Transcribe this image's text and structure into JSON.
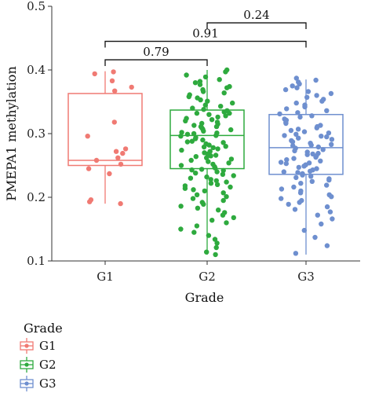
{
  "chart_data": {
    "type": "box",
    "title": "",
    "xlabel": "Grade",
    "ylabel": "PMEPA1 methylation",
    "ylim": [
      0.1,
      0.5
    ],
    "yticks": [
      0.1,
      0.2,
      0.3,
      0.4,
      0.5
    ],
    "yticklabels": [
      "0.1",
      "0.2",
      "0.3",
      "0.4",
      "0.5"
    ],
    "categories": [
      "G1",
      "G2",
      "G3"
    ],
    "colors": {
      "G1": "#F07A73",
      "G2": "#2EAA3E",
      "G3": "#6E8FCF"
    },
    "legend": {
      "title": "Grade",
      "position": "bottom-left",
      "items": [
        "G1",
        "G2",
        "G3"
      ]
    },
    "boxes": [
      {
        "name": "G1",
        "whisker_low": 0.19,
        "q1": 0.25,
        "median": 0.258,
        "q3": 0.363,
        "whisker_high": 0.398
      },
      {
        "name": "G2",
        "whisker_low": 0.11,
        "q1": 0.245,
        "median": 0.297,
        "q3": 0.337,
        "whisker_high": 0.4
      },
      {
        "name": "G3",
        "whisker_low": 0.11,
        "q1": 0.236,
        "median": 0.278,
        "q3": 0.33,
        "whisker_high": 0.385
      }
    ],
    "comparisons": [
      {
        "groups": [
          "G1",
          "G2"
        ],
        "label": "0.79",
        "y": 0.416
      },
      {
        "groups": [
          "G1",
          "G3"
        ],
        "label": "0.91",
        "y": 0.445
      },
      {
        "groups": [
          "G2",
          "G3"
        ],
        "label": "0.24",
        "y": 0.474
      }
    ],
    "points": {
      "G1": [
        0.397,
        0.394,
        0.383,
        0.373,
        0.367,
        0.318,
        0.296,
        0.276,
        0.272,
        0.269,
        0.262,
        0.258,
        0.252,
        0.245,
        0.237,
        0.196,
        0.193,
        0.19
      ],
      "G2": [
        0.4,
        0.397,
        0.392,
        0.389,
        0.385,
        0.382,
        0.38,
        0.377,
        0.374,
        0.372,
        0.369,
        0.366,
        0.364,
        0.361,
        0.358,
        0.356,
        0.353,
        0.351,
        0.348,
        0.345,
        0.343,
        0.34,
        0.338,
        0.336,
        0.334,
        0.332,
        0.33,
        0.328,
        0.326,
        0.324,
        0.322,
        0.32,
        0.318,
        0.316,
        0.315,
        0.313,
        0.311,
        0.309,
        0.307,
        0.306,
        0.304,
        0.302,
        0.3,
        0.299,
        0.297,
        0.296,
        0.294,
        0.292,
        0.29,
        0.288,
        0.286,
        0.284,
        0.282,
        0.28,
        0.278,
        0.276,
        0.274,
        0.272,
        0.27,
        0.268,
        0.266,
        0.264,
        0.262,
        0.26,
        0.258,
        0.256,
        0.254,
        0.252,
        0.25,
        0.248,
        0.246,
        0.244,
        0.242,
        0.24,
        0.238,
        0.236,
        0.234,
        0.232,
        0.23,
        0.228,
        0.226,
        0.224,
        0.222,
        0.22,
        0.218,
        0.216,
        0.214,
        0.212,
        0.21,
        0.207,
        0.204,
        0.201,
        0.198,
        0.195,
        0.192,
        0.189,
        0.186,
        0.183,
        0.18,
        0.176,
        0.172,
        0.168,
        0.164,
        0.16,
        0.155,
        0.15,
        0.145,
        0.14,
        0.134,
        0.128,
        0.121,
        0.114,
        0.11,
        0.332,
        0.301,
        0.287,
        0.265,
        0.243,
        0.311,
        0.279
      ],
      "G3": [
        0.387,
        0.384,
        0.381,
        0.378,
        0.375,
        0.372,
        0.369,
        0.366,
        0.363,
        0.36,
        0.357,
        0.354,
        0.351,
        0.348,
        0.345,
        0.342,
        0.339,
        0.336,
        0.333,
        0.331,
        0.328,
        0.326,
        0.323,
        0.321,
        0.318,
        0.316,
        0.313,
        0.311,
        0.309,
        0.307,
        0.305,
        0.303,
        0.301,
        0.299,
        0.297,
        0.295,
        0.293,
        0.291,
        0.289,
        0.287,
        0.285,
        0.283,
        0.281,
        0.279,
        0.277,
        0.275,
        0.273,
        0.271,
        0.269,
        0.267,
        0.265,
        0.263,
        0.261,
        0.259,
        0.257,
        0.255,
        0.253,
        0.251,
        0.249,
        0.247,
        0.245,
        0.243,
        0.241,
        0.239,
        0.237,
        0.235,
        0.233,
        0.231,
        0.229,
        0.227,
        0.225,
        0.222,
        0.219,
        0.216,
        0.213,
        0.21,
        0.207,
        0.204,
        0.201,
        0.198,
        0.195,
        0.192,
        0.189,
        0.185,
        0.181,
        0.177,
        0.172,
        0.166,
        0.158,
        0.148,
        0.137,
        0.124,
        0.112,
        0.296,
        0.282,
        0.268,
        0.254,
        0.24
      ]
    }
  }
}
